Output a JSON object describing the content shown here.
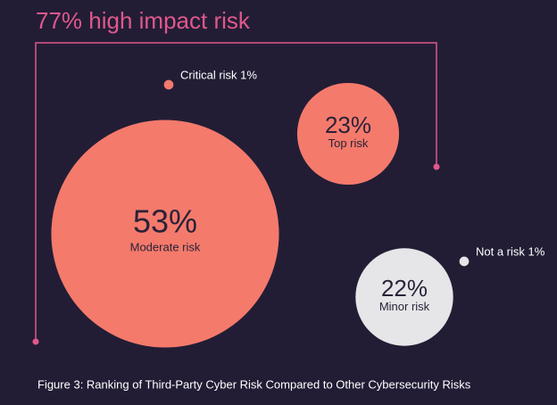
{
  "chart_data": {
    "type": "bubble",
    "title": "77% high impact risk",
    "caption": "Figure 3: Ranking of Third-Party Cyber Risk Compared to Other Cybersecurity Risks",
    "categories": [
      "Critical risk 1%",
      "Top risk",
      "Moderate risk",
      "Not a risk 1%",
      "Minor risk"
    ],
    "values": [
      1,
      23,
      53,
      1,
      22
    ],
    "value_labels": [
      null,
      "23%",
      "53%",
      null,
      "22%"
    ],
    "colors": [
      "#f47a6c",
      "#f47a6c",
      "#f47a6c",
      "#e6e6e8",
      "#e6e6e8"
    ]
  }
}
